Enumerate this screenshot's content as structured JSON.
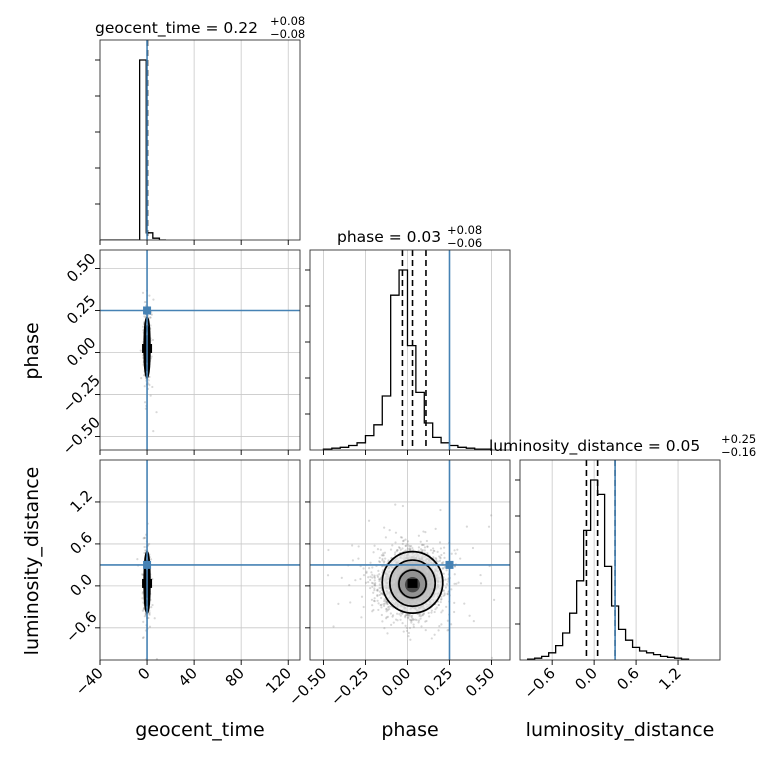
{
  "chart_data": {
    "type": "corner",
    "parameters": [
      "geocent_time",
      "phase",
      "luminosity_distance"
    ],
    "axis_labels": {
      "geocent_time": "geocent_time",
      "phase": "phase",
      "luminosity_distance": "luminosity_distance"
    },
    "ranges": {
      "geocent_time": [
        -40,
        130
      ],
      "phase": [
        -0.58,
        0.61
      ],
      "luminosity_distance": [
        -1.06,
        1.8
      ]
    },
    "ticks": {
      "geocent_time": [
        -40,
        0,
        40,
        80,
        120
      ],
      "phase": [
        -0.5,
        -0.25,
        0.0,
        0.25,
        0.5
      ],
      "luminosity_distance": [
        -0.6,
        0.0,
        0.6,
        1.2
      ]
    },
    "tick_labels": {
      "geocent_time": [
        "−40",
        "0",
        "40",
        "80",
        "120"
      ],
      "phase": [
        "−0.50",
        "−0.25",
        "0.00",
        "0.25",
        "0.50"
      ],
      "luminosity_distance": [
        "−0.6",
        "0.0",
        "0.6",
        "1.2"
      ]
    },
    "truths": {
      "geocent_time": 0.0,
      "phase": 0.25,
      "luminosity_distance": 0.3
    },
    "titles": [
      {
        "param": "geocent_time",
        "text": "geocent_time = 0.22",
        "sup": "+0.08",
        "sub": "−0.08"
      },
      {
        "param": "phase",
        "text": "phase = 0.03",
        "sup": "+0.08",
        "sub": "−0.06"
      },
      {
        "param": "luminosity_distance",
        "text": "luminosity_distance = 0.05",
        "sup": "+0.25",
        "sub": "−0.16"
      }
    ],
    "quantiles": {
      "geocent_time": [
        0.14,
        0.22,
        0.3
      ],
      "phase": [
        -0.03,
        0.03,
        0.11
      ],
      "luminosity_distance": [
        -0.11,
        0.05,
        0.3
      ]
    },
    "histograms": {
      "geocent_time": {
        "edges": [
          -40,
          -34.4,
          -28.8,
          -23.1,
          -17.5,
          -11.9,
          -6.3,
          -0.7,
          4.9,
          10.5,
          16.1
        ],
        "counts": [
          0,
          0,
          0,
          0,
          0,
          0,
          1.0,
          0.04,
          0.01,
          0
        ]
      },
      "phase": {
        "edges": [
          -0.5,
          -0.45,
          -0.4,
          -0.35,
          -0.3,
          -0.25,
          -0.2,
          -0.15,
          -0.1,
          -0.05,
          0.0,
          0.05,
          0.1,
          0.15,
          0.2,
          0.25,
          0.3,
          0.35,
          0.4,
          0.45,
          0.5
        ],
        "counts": [
          0.005,
          0.01,
          0.015,
          0.025,
          0.04,
          0.08,
          0.14,
          0.3,
          0.86,
          1.0,
          0.58,
          0.32,
          0.15,
          0.07,
          0.04,
          0.025,
          0.015,
          0.01,
          0.005,
          0.005
        ]
      },
      "luminosity_distance": {
        "edges": [
          -0.95,
          -0.85,
          -0.75,
          -0.65,
          -0.55,
          -0.45,
          -0.35,
          -0.25,
          -0.15,
          -0.05,
          0.05,
          0.15,
          0.25,
          0.35,
          0.45,
          0.55,
          0.65,
          0.75,
          0.85,
          0.95,
          1.05,
          1.15,
          1.25,
          1.35
        ],
        "counts": [
          0.005,
          0.01,
          0.02,
          0.04,
          0.08,
          0.15,
          0.26,
          0.44,
          0.72,
          1.0,
          0.92,
          0.52,
          0.3,
          0.17,
          0.11,
          0.07,
          0.05,
          0.04,
          0.03,
          0.02,
          0.015,
          0.01,
          0.005
        ]
      }
    },
    "samples_2d": {
      "phase_vs_geocent_time": {
        "x_mean": 0.0,
        "x_std": 1.2,
        "y_mean": 0.03,
        "y_std": 0.09,
        "n": 700
      },
      "luminosity_distance_vs_geocent_time": {
        "x_mean": 0.0,
        "x_std": 1.2,
        "y_mean": 0.05,
        "y_std": 0.22,
        "n": 700
      },
      "luminosity_distance_vs_phase": {
        "x_mean": 0.03,
        "x_std": 0.09,
        "y_mean": 0.05,
        "y_std": 0.22,
        "n": 2600
      }
    },
    "grid": true,
    "colors": {
      "truth": "#4682b4",
      "hist": "#000000",
      "contour": "#000000",
      "points": "#8f8f8f",
      "grid": "#c8c8c8"
    }
  }
}
